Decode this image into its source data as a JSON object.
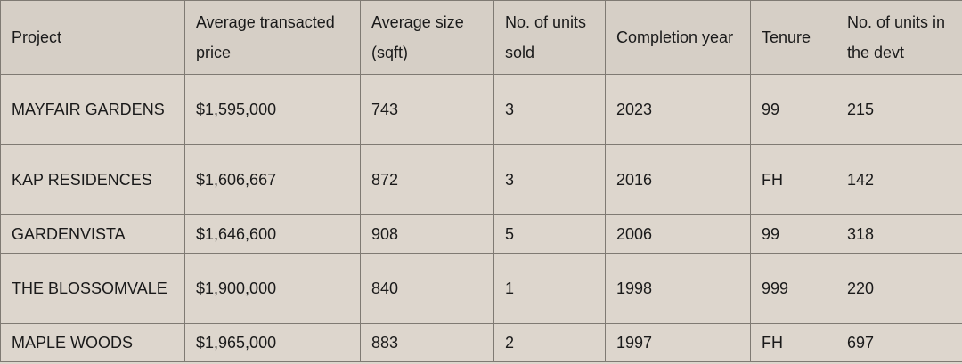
{
  "table": {
    "headers": [
      "Project",
      "Average transacted price",
      "Average size (sqft)",
      "No. of units sold",
      "Completion year",
      "Tenure",
      "No. of units in the devt"
    ],
    "rows": [
      [
        "MAYFAIR GARDENS",
        "$1,595,000",
        "743",
        "3",
        "2023",
        "99",
        "215"
      ],
      [
        "KAP RESIDENCES",
        "$1,606,667",
        "872",
        "3",
        "2016",
        "FH",
        "142"
      ],
      [
        "GARDENVISTA",
        "$1,646,600",
        "908",
        "5",
        "2006",
        "99",
        "318"
      ],
      [
        "THE BLOSSOMVALE",
        "$1,900,000",
        "840",
        "1",
        "1998",
        "999",
        "220"
      ],
      [
        "MAPLE WOODS",
        "$1,965,000",
        "883",
        "2",
        "1997",
        "FH",
        "697"
      ]
    ]
  }
}
